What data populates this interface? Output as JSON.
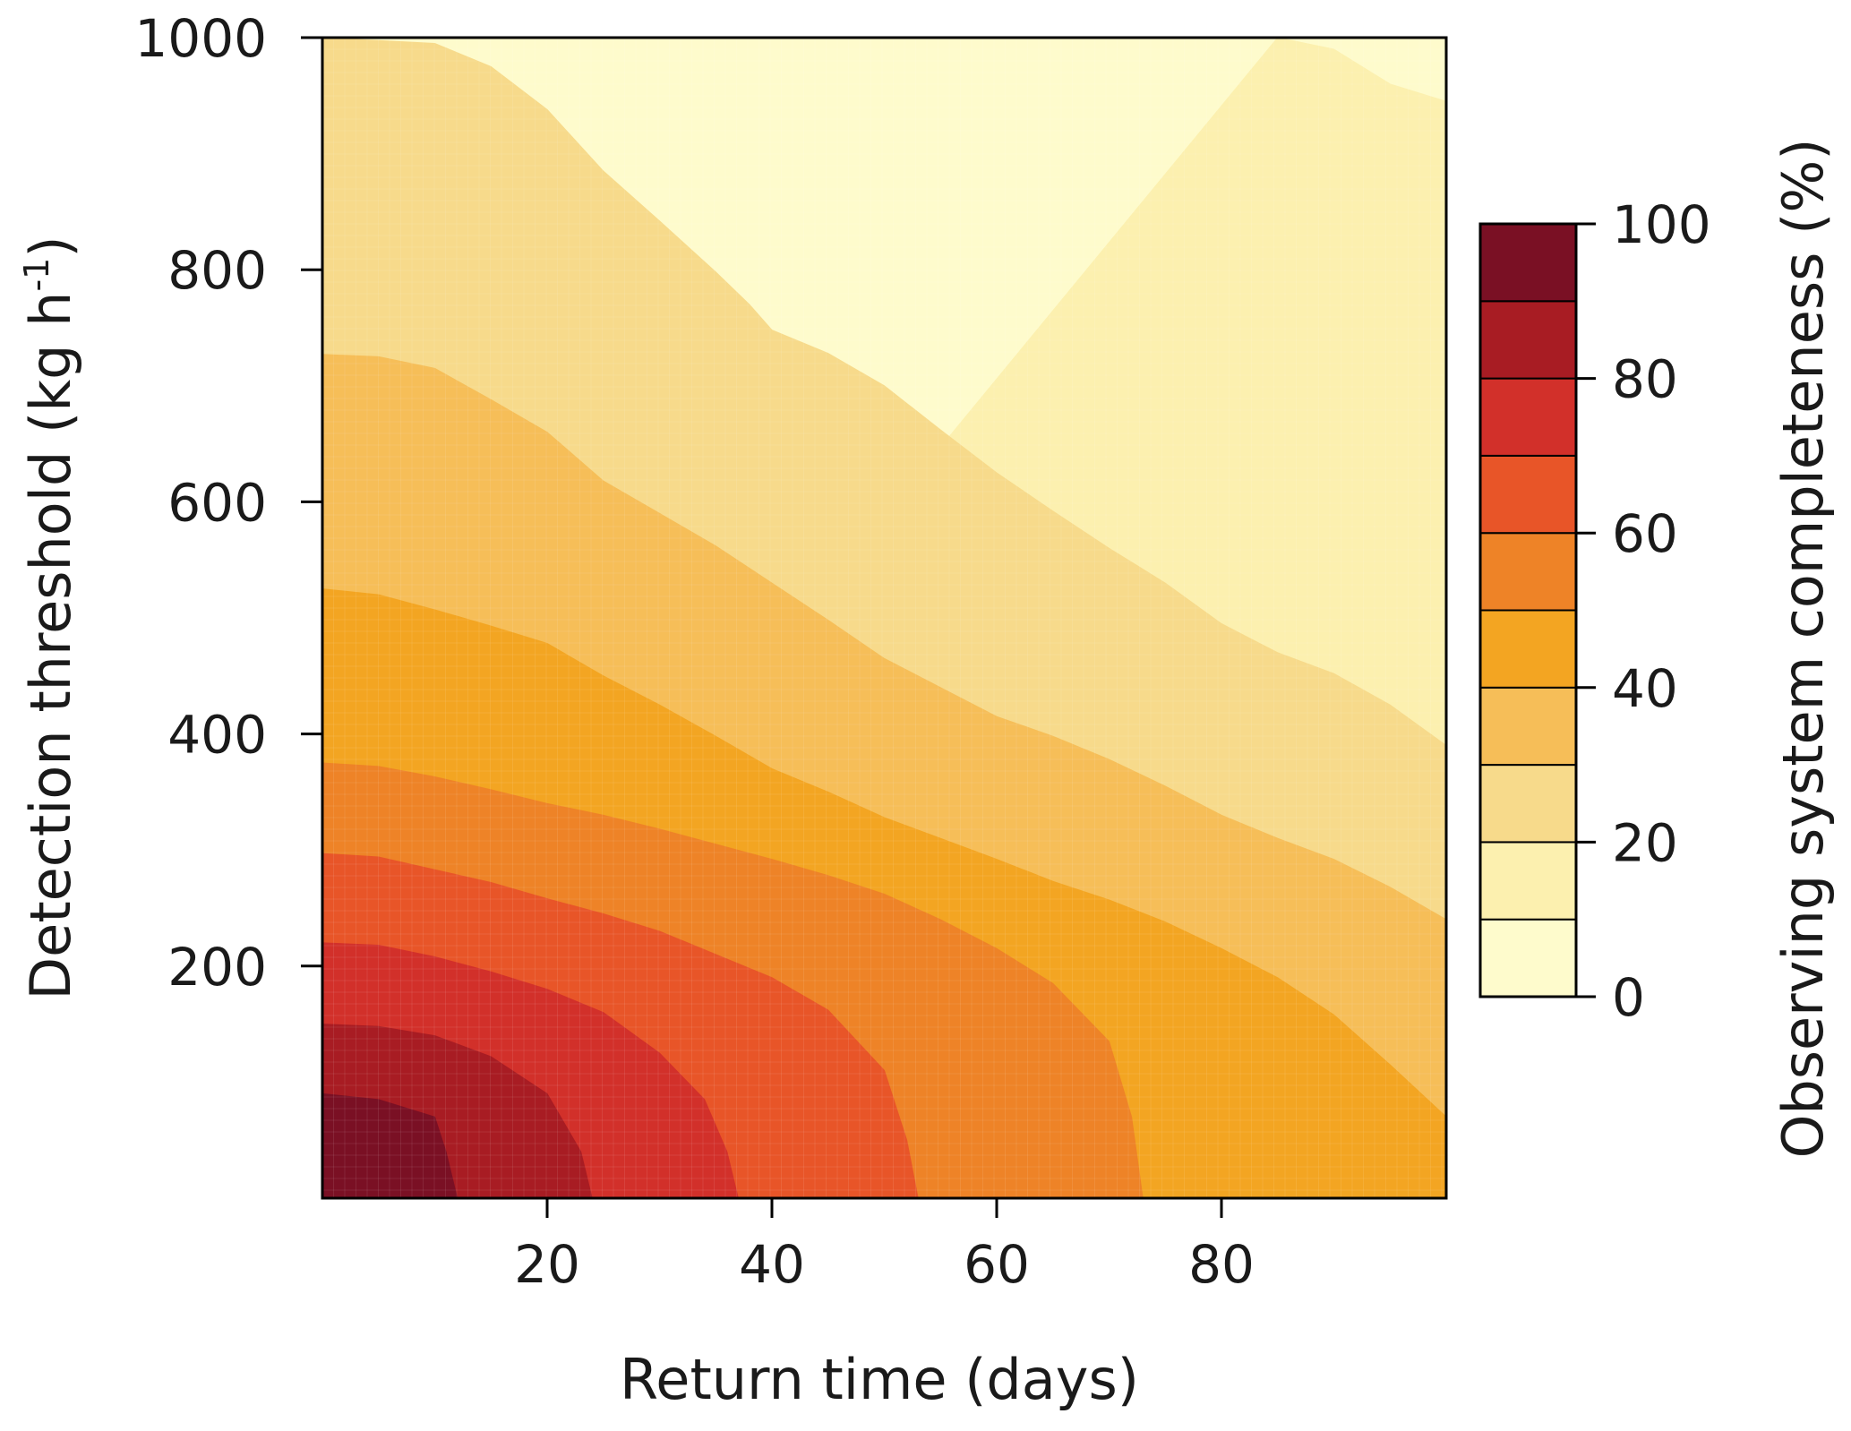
{
  "chart_data": {
    "type": "heatmap",
    "style": "filled contour",
    "title": "",
    "xlabel": "Return time (days)",
    "ylabel": {
      "main": "Detection threshold (kg h",
      "sup": "-1",
      "end": ")"
    },
    "xlim": [
      0,
      100
    ],
    "ylim": [
      0,
      1000
    ],
    "x_ticks": [
      20,
      40,
      60,
      80
    ],
    "y_ticks": [
      200,
      400,
      600,
      800,
      1000
    ],
    "grid": false,
    "colorbar": {
      "label": "Observing system completeness (%)",
      "range": [
        0,
        100
      ],
      "ticks": [
        0,
        20,
        40,
        60,
        80,
        100
      ],
      "levels": [
        0,
        10,
        20,
        30,
        40,
        50,
        60,
        70,
        80,
        90,
        100
      ],
      "colors": [
        "#FEFBCC",
        "#FCF0AF",
        "#F7DA8B",
        "#F6BE58",
        "#F3A522",
        "#EE8327",
        "#E85528",
        "#D2302A",
        "#A81C23",
        "#7A1024"
      ],
      "placement": "right"
    },
    "contour_boundaries": [
      {
        "level": 90,
        "points": [
          [
            0,
            90
          ],
          [
            5,
            85
          ],
          [
            10,
            70
          ],
          [
            11,
            40
          ],
          [
            12,
            0
          ]
        ]
      },
      {
        "level": 80,
        "points": [
          [
            0,
            150
          ],
          [
            5,
            148
          ],
          [
            10,
            140
          ],
          [
            15,
            122
          ],
          [
            20,
            90
          ],
          [
            23,
            40
          ],
          [
            24,
            0
          ]
        ]
      },
      {
        "level": 70,
        "points": [
          [
            0,
            220
          ],
          [
            5,
            218
          ],
          [
            10,
            208
          ],
          [
            15,
            195
          ],
          [
            20,
            180
          ],
          [
            25,
            160
          ],
          [
            30,
            125
          ],
          [
            34,
            85
          ],
          [
            36,
            40
          ],
          [
            37,
            0
          ]
        ]
      },
      {
        "level": 60,
        "points": [
          [
            0,
            297
          ],
          [
            5,
            294
          ],
          [
            10,
            283
          ],
          [
            15,
            272
          ],
          [
            20,
            258
          ],
          [
            25,
            245
          ],
          [
            30,
            230
          ],
          [
            35,
            210
          ],
          [
            40,
            190
          ],
          [
            45,
            162
          ],
          [
            50,
            110
          ],
          [
            52,
            50
          ],
          [
            53,
            0
          ]
        ]
      },
      {
        "level": 50,
        "points": [
          [
            0,
            375
          ],
          [
            5,
            372
          ],
          [
            10,
            363
          ],
          [
            15,
            352
          ],
          [
            20,
            340
          ],
          [
            25,
            330
          ],
          [
            30,
            318
          ],
          [
            35,
            305
          ],
          [
            40,
            292
          ],
          [
            45,
            278
          ],
          [
            50,
            262
          ],
          [
            55,
            240
          ],
          [
            60,
            215
          ],
          [
            65,
            185
          ],
          [
            70,
            135
          ],
          [
            72,
            70
          ],
          [
            73,
            0
          ]
        ]
      },
      {
        "level": 40,
        "points": [
          [
            0,
            525
          ],
          [
            5,
            520
          ],
          [
            10,
            507
          ],
          [
            15,
            493
          ],
          [
            20,
            478
          ],
          [
            25,
            450
          ],
          [
            30,
            425
          ],
          [
            35,
            398
          ],
          [
            40,
            370
          ],
          [
            45,
            350
          ],
          [
            50,
            328
          ],
          [
            55,
            310
          ],
          [
            60,
            292
          ],
          [
            65,
            273
          ],
          [
            70,
            257
          ],
          [
            75,
            238
          ],
          [
            80,
            215
          ],
          [
            85,
            190
          ],
          [
            90,
            158
          ],
          [
            95,
            115
          ],
          [
            100,
            70
          ]
        ]
      },
      {
        "level": 30,
        "points": [
          [
            0,
            727
          ],
          [
            5,
            725
          ],
          [
            10,
            715
          ],
          [
            15,
            688
          ],
          [
            20,
            660
          ],
          [
            25,
            618
          ],
          [
            30,
            590
          ],
          [
            35,
            562
          ],
          [
            40,
            530
          ],
          [
            45,
            498
          ],
          [
            50,
            465
          ],
          [
            55,
            440
          ],
          [
            60,
            415
          ],
          [
            65,
            398
          ],
          [
            70,
            378
          ],
          [
            75,
            355
          ],
          [
            80,
            330
          ],
          [
            85,
            310
          ],
          [
            90,
            292
          ],
          [
            95,
            268
          ],
          [
            100,
            240
          ]
        ]
      },
      {
        "level": 20,
        "points": [
          [
            0,
            1000
          ],
          [
            10,
            995
          ],
          [
            15,
            975
          ],
          [
            20,
            938
          ],
          [
            25,
            885
          ],
          [
            30,
            842
          ],
          [
            35,
            798
          ],
          [
            38,
            770
          ],
          [
            40,
            748
          ],
          [
            45,
            728
          ],
          [
            50,
            700
          ],
          [
            55,
            662
          ],
          [
            60,
            625
          ],
          [
            65,
            592
          ],
          [
            70,
            560
          ],
          [
            75,
            530
          ],
          [
            80,
            495
          ],
          [
            85,
            470
          ],
          [
            90,
            452
          ],
          [
            95,
            425
          ],
          [
            100,
            390
          ]
        ]
      },
      {
        "level": 10,
        "points": [
          [
            85,
            1000
          ],
          [
            90,
            990
          ],
          [
            95,
            960
          ],
          [
            100,
            945
          ]
        ]
      }
    ]
  }
}
